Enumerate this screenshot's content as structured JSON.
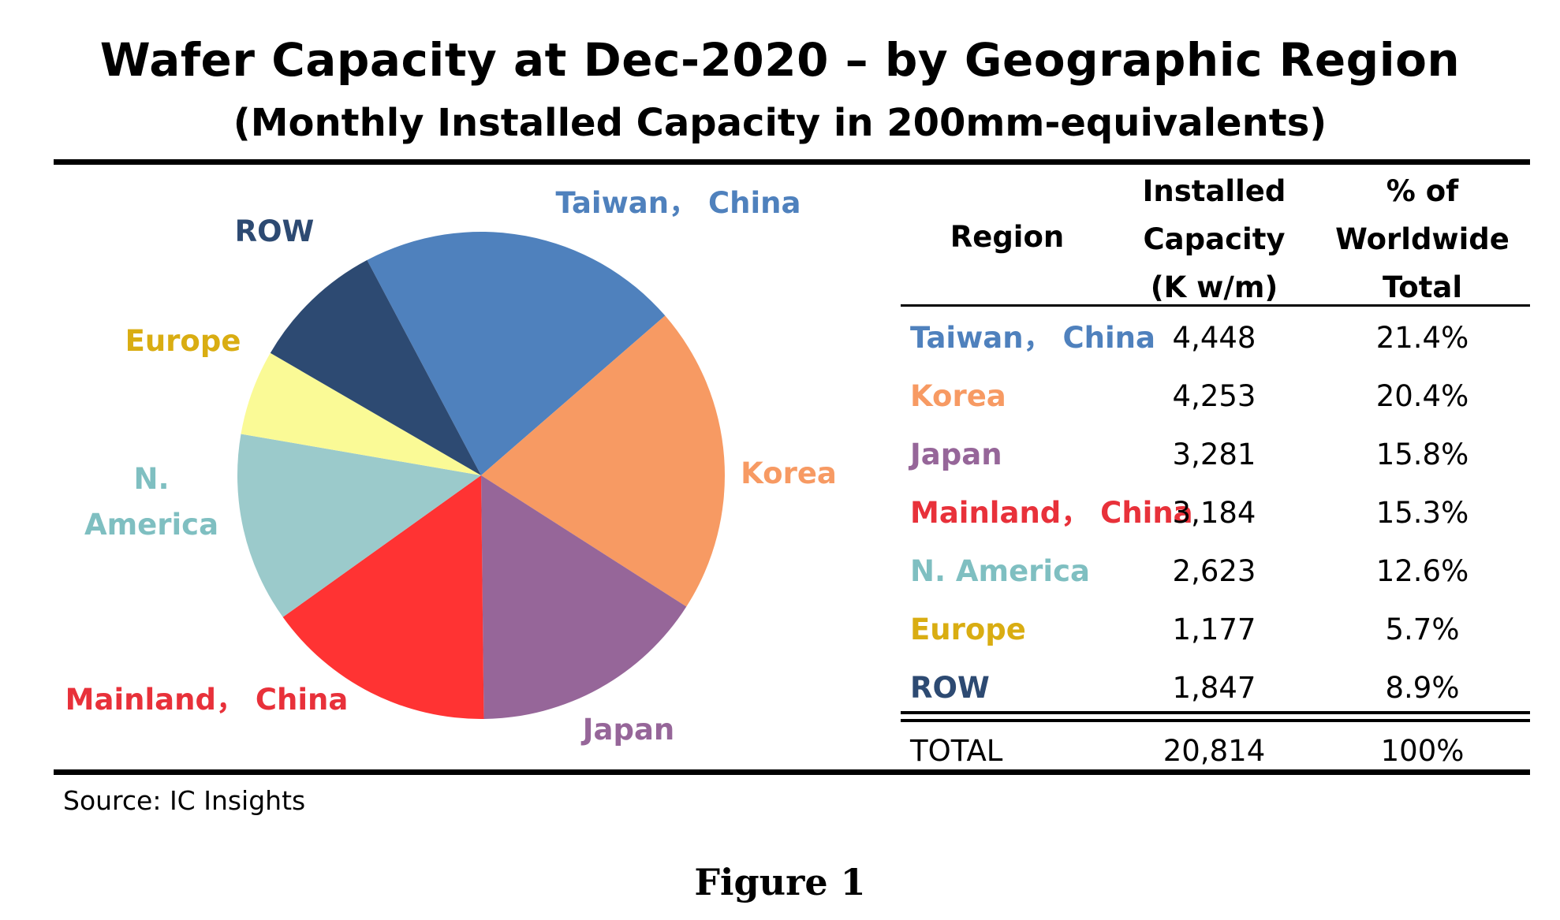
{
  "title": "Wafer Capacity at Dec-2020 – by Geographic Region",
  "subtitle": "(Monthly Installed Capacity in 200mm-equivalents)",
  "source": "Source:  IC Insights",
  "figure_caption": "Figure 1",
  "table": {
    "headers": {
      "region": "Region",
      "capacity": [
        "Installed",
        "Capacity",
        "(K w/m)"
      ],
      "percent": [
        "% of",
        "Worldwide",
        "Total"
      ]
    },
    "total": {
      "region": "TOTAL",
      "capacity": "20,814",
      "percent": "100%"
    }
  },
  "chart_data": {
    "type": "pie",
    "title": "Wafer Capacity at Dec-2020 – by Geographic Region",
    "subtitle": "(Monthly Installed Capacity in 200mm-equivalents)",
    "unit": "K w/m",
    "slices": [
      {
        "label": "Taiwan， China",
        "value": 4448,
        "capacity_text": "4,448",
        "percent": 21.4,
        "percent_text": "21.4%",
        "color": "#4F81BD",
        "text_color": "#4F81BD"
      },
      {
        "label": "Korea",
        "value": 4253,
        "capacity_text": "4,253",
        "percent": 20.4,
        "percent_text": "20.4%",
        "color": "#F79A63",
        "text_color": "#F79A63"
      },
      {
        "label": "Japan",
        "value": 3281,
        "capacity_text": "3,281",
        "percent": 15.8,
        "percent_text": "15.8%",
        "color": "#966699",
        "text_color": "#966699"
      },
      {
        "label": "Mainland， China",
        "value": 3184,
        "capacity_text": "3,184",
        "percent": 15.3,
        "percent_text": "15.3%",
        "color": "#FF3333",
        "text_color": "#E8313A"
      },
      {
        "label": "N. America",
        "value": 2623,
        "capacity_text": "2,623",
        "percent": 12.6,
        "percent_text": "12.6%",
        "color": "#9BCACB",
        "text_color": "#7FBFC1"
      },
      {
        "label": "Europe",
        "value": 1177,
        "capacity_text": "1,177",
        "percent": 5.7,
        "percent_text": "5.7%",
        "color": "#FAFA96",
        "text_color": "#D9AD12"
      },
      {
        "label": "ROW",
        "value": 1847,
        "capacity_text": "1,847",
        "percent": 8.9,
        "percent_text": "8.9%",
        "color": "#2D4A72",
        "text_color": "#2D4A72"
      }
    ],
    "pie_labels": [
      {
        "lines": [
          "Taiwan， China"
        ]
      },
      {
        "lines": [
          "Korea"
        ]
      },
      {
        "lines": [
          "Japan"
        ]
      },
      {
        "lines": [
          "Mainland， China"
        ]
      },
      {
        "lines": [
          "N.",
          "America"
        ]
      },
      {
        "lines": [
          "Europe"
        ]
      },
      {
        "lines": [
          "ROW"
        ]
      }
    ]
  }
}
